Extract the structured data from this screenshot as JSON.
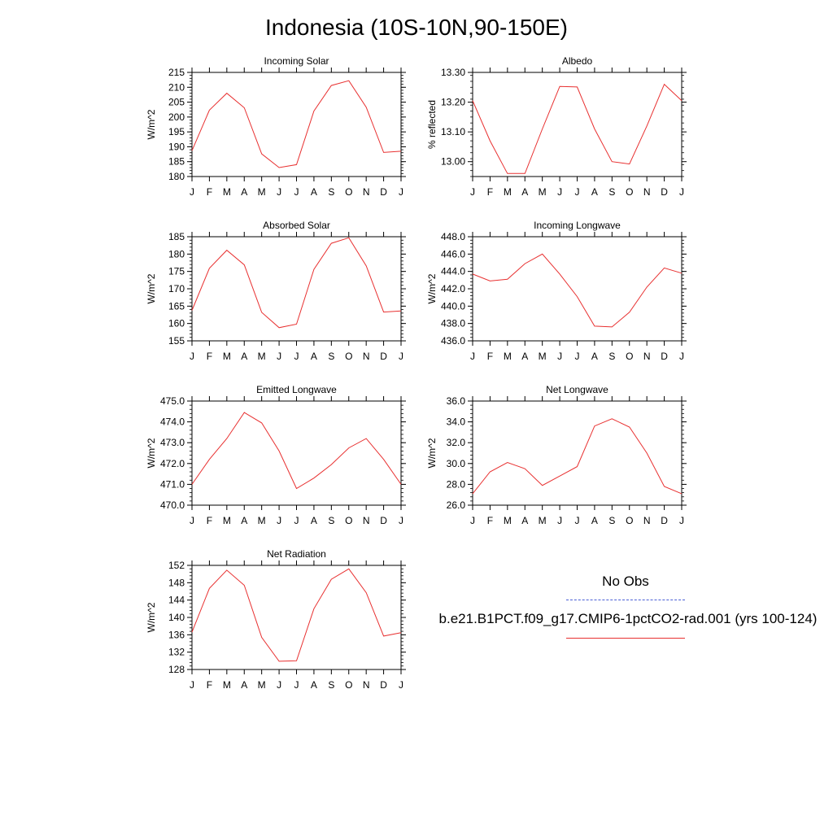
{
  "figure": {
    "title": "Indonesia (10S-10N,90-150E)"
  },
  "legend": {
    "obs_label": "No Obs",
    "obs_color": "#4a5fd6",
    "model_label": "b.e21.B1PCT.f09_g17.CMIP6-1pctCO2-rad.001 (yrs 100-124)",
    "model_color": "#e83030"
  },
  "chart_data": [
    {
      "type": "line",
      "title": "Incoming Solar",
      "ylabel": "W/m^2",
      "categories": [
        "J",
        "F",
        "M",
        "A",
        "M",
        "J",
        "J",
        "A",
        "S",
        "O",
        "N",
        "D",
        "J"
      ],
      "ylim": [
        180,
        215
      ],
      "yticks": [
        180,
        185,
        190,
        195,
        200,
        205,
        210,
        215
      ],
      "ytick_labels": [
        "180",
        "185",
        "190",
        "195",
        "200",
        "205",
        "210",
        "215"
      ],
      "series": [
        {
          "values": [
            188.7,
            202.3,
            208.0,
            203.1,
            187.6,
            183.0,
            184.0,
            202.0,
            210.6,
            212.2,
            203.3,
            188.1,
            188.5
          ],
          "color": "#e83030"
        }
      ]
    },
    {
      "type": "line",
      "title": "Albedo",
      "ylabel": "% reflected",
      "categories": [
        "J",
        "F",
        "M",
        "A",
        "M",
        "J",
        "J",
        "A",
        "S",
        "O",
        "N",
        "D",
        "J"
      ],
      "ylim": [
        12.95,
        13.3
      ],
      "yticks": [
        13.0,
        13.1,
        13.2,
        13.3
      ],
      "ytick_labels": [
        "13.00",
        "13.10",
        "13.20",
        "13.30"
      ],
      "series": [
        {
          "values": [
            13.205,
            13.07,
            12.96,
            12.96,
            13.11,
            13.253,
            13.251,
            13.11,
            13.0,
            12.992,
            13.12,
            13.26,
            13.205
          ],
          "color": "#e83030"
        }
      ]
    },
    {
      "type": "line",
      "title": "Absorbed Solar",
      "ylabel": "W/m^2",
      "categories": [
        "J",
        "F",
        "M",
        "A",
        "M",
        "J",
        "J",
        "A",
        "S",
        "O",
        "N",
        "D",
        "J"
      ],
      "ylim": [
        155,
        185
      ],
      "yticks": [
        155,
        160,
        165,
        170,
        175,
        180,
        185
      ],
      "ytick_labels": [
        "155",
        "160",
        "165",
        "170",
        "175",
        "180",
        "185"
      ],
      "series": [
        {
          "values": [
            163.8,
            175.9,
            181.1,
            176.9,
            163.2,
            158.8,
            159.8,
            175.6,
            183.1,
            184.7,
            176.6,
            163.3,
            163.6
          ],
          "color": "#e83030"
        }
      ]
    },
    {
      "type": "line",
      "title": "Incoming Longwave",
      "ylabel": "W/m^2",
      "categories": [
        "J",
        "F",
        "M",
        "A",
        "M",
        "J",
        "J",
        "A",
        "S",
        "O",
        "N",
        "D",
        "J"
      ],
      "ylim": [
        436,
        448
      ],
      "yticks": [
        436,
        438,
        440,
        442,
        444,
        446,
        448
      ],
      "ytick_labels": [
        "436.0",
        "438.0",
        "440.0",
        "442.0",
        "444.0",
        "446.0",
        "448.0"
      ],
      "series": [
        {
          "values": [
            443.7,
            442.9,
            443.1,
            444.9,
            446.0,
            443.7,
            441.1,
            437.7,
            437.6,
            439.3,
            442.2,
            444.4,
            443.8
          ],
          "color": "#e83030"
        }
      ]
    },
    {
      "type": "line",
      "title": "Emitted Longwave",
      "ylabel": "W/m^2",
      "categories": [
        "J",
        "F",
        "M",
        "A",
        "M",
        "J",
        "J",
        "A",
        "S",
        "O",
        "N",
        "D",
        "J"
      ],
      "ylim": [
        470,
        475
      ],
      "yticks": [
        470,
        471,
        472,
        473,
        474,
        475
      ],
      "ytick_labels": [
        "470.0",
        "471.0",
        "472.0",
        "473.0",
        "474.0",
        "475.0"
      ],
      "series": [
        {
          "values": [
            471.0,
            472.2,
            473.2,
            474.45,
            473.95,
            472.6,
            470.8,
            471.3,
            471.95,
            472.75,
            473.2,
            472.2,
            471.0
          ],
          "color": "#e83030"
        }
      ]
    },
    {
      "type": "line",
      "title": "Net Longwave",
      "ylabel": "W/m^2",
      "categories": [
        "J",
        "F",
        "M",
        "A",
        "M",
        "J",
        "J",
        "A",
        "S",
        "O",
        "N",
        "D",
        "J"
      ],
      "ylim": [
        26,
        36
      ],
      "yticks": [
        26,
        28,
        30,
        32,
        34,
        36
      ],
      "ytick_labels": [
        "26.0",
        "28.0",
        "30.0",
        "32.0",
        "34.0",
        "36.0"
      ],
      "series": [
        {
          "values": [
            27.1,
            29.2,
            30.1,
            29.5,
            27.9,
            28.8,
            29.7,
            33.6,
            34.3,
            33.5,
            31.0,
            27.8,
            27.1
          ],
          "color": "#e83030"
        }
      ]
    },
    {
      "type": "line",
      "title": "Net Radiation",
      "ylabel": "W/m^2",
      "categories": [
        "J",
        "F",
        "M",
        "A",
        "M",
        "J",
        "J",
        "A",
        "S",
        "O",
        "N",
        "D",
        "J"
      ],
      "ylim": [
        128,
        152
      ],
      "yticks": [
        128,
        132,
        136,
        140,
        144,
        148,
        152
      ],
      "ytick_labels": [
        "128",
        "132",
        "136",
        "140",
        "144",
        "148",
        "152"
      ],
      "series": [
        {
          "values": [
            136.6,
            146.7,
            150.9,
            147.4,
            135.4,
            129.9,
            130.0,
            142.0,
            148.8,
            151.2,
            145.7,
            135.7,
            136.5
          ],
          "color": "#e83030"
        }
      ]
    }
  ]
}
